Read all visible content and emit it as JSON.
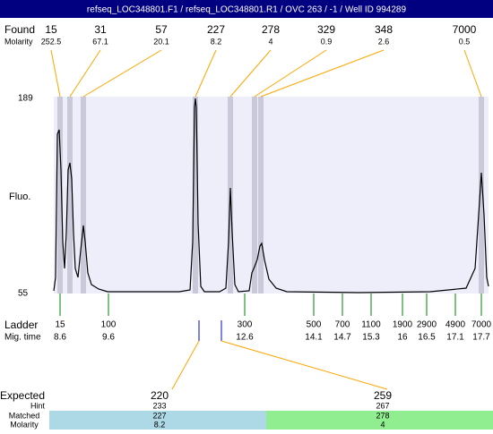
{
  "title": "refseq_LOC348801.F1 / refseq_LOC348801.R1 / OVC 263 / -1 / Well ID 994289",
  "found": {
    "label": "Found",
    "values": [
      15,
      31,
      57,
      227,
      278,
      329,
      348,
      7000
    ]
  },
  "molarity": {
    "label": "Molarity",
    "values": [
      252.5,
      67.1,
      20.1,
      8.2,
      4,
      0.9,
      2.6,
      0.5
    ]
  },
  "y_axis": {
    "label": "Fluo.",
    "top": 189,
    "bottom": 55
  },
  "ladder": {
    "label": "Ladder",
    "sizes": [
      15,
      100,
      300,
      500,
      700,
      1100,
      1900,
      2900,
      4900,
      7000
    ],
    "mig_label": "Mig. time",
    "mig_times": [
      8.6,
      9.6,
      12.6,
      14.1,
      14.7,
      15.3,
      16,
      16.5,
      17.1,
      17.7
    ]
  },
  "expected": {
    "label": "Expected",
    "values": [
      220,
      259
    ]
  },
  "hint": {
    "label": "Hint",
    "values": [
      233,
      267
    ]
  },
  "matched": {
    "label": "Matched",
    "values": [
      227,
      278
    ]
  },
  "matched_molarity": {
    "label": "Molarity",
    "values": [
      8.2,
      4
    ]
  }
}
